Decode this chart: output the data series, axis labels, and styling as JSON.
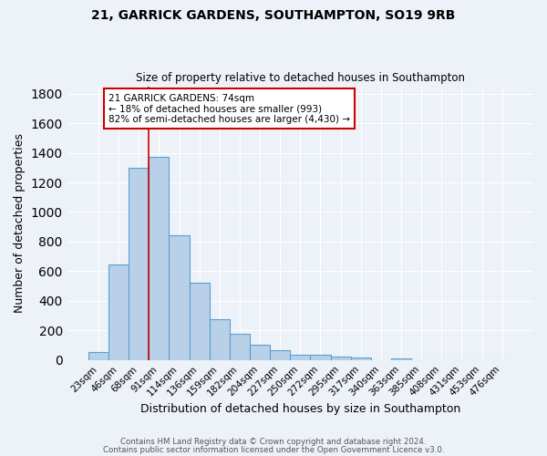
{
  "title1": "21, GARRICK GARDENS, SOUTHAMPTON, SO19 9RB",
  "title2": "Size of property relative to detached houses in Southampton",
  "xlabel": "Distribution of detached houses by size in Southampton",
  "ylabel": "Number of detached properties",
  "categories": [
    "23sqm",
    "46sqm",
    "68sqm",
    "91sqm",
    "114sqm",
    "136sqm",
    "159sqm",
    "182sqm",
    "204sqm",
    "227sqm",
    "250sqm",
    "272sqm",
    "295sqm",
    "317sqm",
    "340sqm",
    "363sqm",
    "385sqm",
    "408sqm",
    "431sqm",
    "453sqm",
    "476sqm"
  ],
  "values": [
    55,
    645,
    1300,
    1370,
    845,
    525,
    275,
    175,
    105,
    65,
    35,
    35,
    25,
    15,
    0,
    13,
    0,
    0,
    0,
    0,
    0
  ],
  "bar_color": "#b8d0e8",
  "bar_edge_color": "#5a9fd4",
  "bg_color": "#edf2f8",
  "grid_color": "#ffffff",
  "vline_x": 2.5,
  "vline_color": "#cc0000",
  "annotation_text": "21 GARRICK GARDENS: 74sqm\n← 18% of detached houses are smaller (993)\n82% of semi-detached houses are larger (4,430) →",
  "annotation_box_color": "#ffffff",
  "annotation_box_edge": "#cc0000",
  "ylim": [
    0,
    1850
  ],
  "yticks": [
    0,
    200,
    400,
    600,
    800,
    1000,
    1200,
    1400,
    1600,
    1800
  ],
  "footer1": "Contains HM Land Registry data © Crown copyright and database right 2024.",
  "footer2": "Contains public sector information licensed under the Open Government Licence v3.0."
}
